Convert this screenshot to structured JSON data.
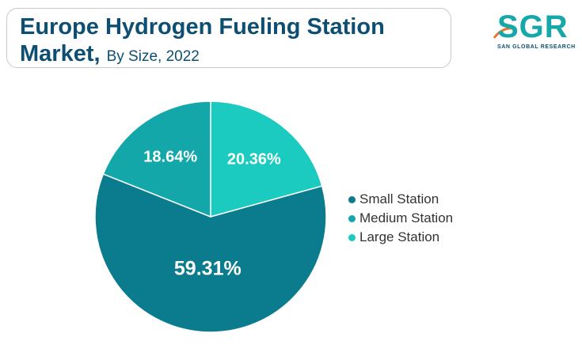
{
  "title": {
    "line1": "Europe Hydrogen Fueling Station",
    "line2": "Market,",
    "subtitle": "By Size, 2022"
  },
  "logo": {
    "text": "SGR",
    "subtext": "SAN GLOBAL RESEARCH"
  },
  "colors": {
    "small": "#0b7b8e",
    "medium": "#13a7a9",
    "large": "#1ccbc0",
    "title": "#0d4f72"
  },
  "chart_data": {
    "type": "pie",
    "slices": [
      {
        "name": "Small Station",
        "value": 59.31,
        "label": "59.31%",
        "color": "#0b7b8e"
      },
      {
        "name": "Medium Station",
        "value": 18.64,
        "label": "18.64%",
        "color": "#13a7a9"
      },
      {
        "name": "Large Station",
        "value": 20.36,
        "label": "20.36%",
        "color": "#1ccbc0"
      }
    ],
    "legend": [
      "Small Station",
      "Medium Station",
      "Large Station"
    ],
    "legend_position": "right"
  }
}
